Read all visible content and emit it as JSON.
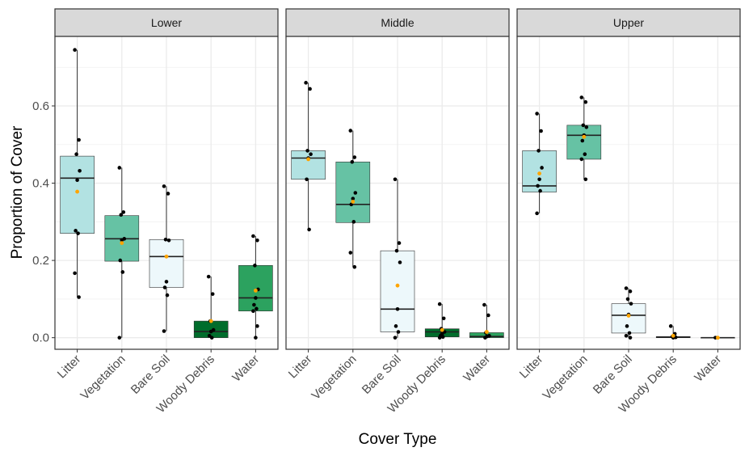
{
  "chart_data": {
    "type": "boxplot",
    "xlabel": "Cover Type",
    "ylabel": "Proportion of Cover",
    "ylim": [
      -0.03,
      0.78
    ],
    "yticks": [
      0.0,
      0.2,
      0.4,
      0.6
    ],
    "ytick_labels": [
      "0.0",
      "0.2",
      "0.4",
      "0.6"
    ],
    "grid": true,
    "categories": [
      "Litter",
      "Vegetation",
      "Bare Soil",
      "Woody Debris",
      "Water"
    ],
    "fill_colors": [
      "#b2e2e2",
      "#66c2a4",
      "#edf8fb",
      "#006d2c",
      "#2ca25f"
    ],
    "mean_color": "#ffa500",
    "panels": [
      {
        "name": "Lower",
        "boxes": [
          {
            "min": 0.105,
            "q1": 0.27,
            "median": 0.413,
            "q3": 0.47,
            "max": 0.745,
            "mean": 0.378,
            "points": [
              0.745,
              0.512,
              0.475,
              0.432,
              0.408,
              0.277,
              0.27,
              0.167,
              0.105
            ]
          },
          {
            "min": 0.0,
            "q1": 0.198,
            "median": 0.256,
            "q3": 0.316,
            "max": 0.44,
            "mean": 0.245,
            "points": [
              0.44,
              0.325,
              0.318,
              0.256,
              0.253,
              0.2,
              0.17,
              0.0
            ]
          },
          {
            "min": 0.017,
            "q1": 0.13,
            "median": 0.21,
            "q3": 0.254,
            "max": 0.392,
            "mean": 0.21,
            "points": [
              0.392,
              0.373,
              0.254,
              0.252,
              0.145,
              0.13,
              0.11,
              0.017
            ]
          },
          {
            "min": 0.0,
            "q1": 0.0,
            "median": 0.016,
            "q3": 0.043,
            "max": 0.158,
            "mean": 0.043,
            "points": [
              0.158,
              0.113,
              0.043,
              0.02,
              0.016,
              0.005,
              0.0
            ]
          },
          {
            "min": 0.0,
            "q1": 0.069,
            "median": 0.103,
            "q3": 0.187,
            "max": 0.263,
            "mean": 0.122,
            "points": [
              0.263,
              0.252,
              0.187,
              0.125,
              0.103,
              0.085,
              0.075,
              0.069,
              0.03,
              0.0
            ]
          }
        ]
      },
      {
        "name": "Middle",
        "boxes": [
          {
            "min": 0.28,
            "q1": 0.41,
            "median": 0.465,
            "q3": 0.484,
            "max": 0.66,
            "mean": 0.462,
            "points": [
              0.66,
              0.644,
              0.484,
              0.475,
              0.465,
              0.41,
              0.28
            ]
          },
          {
            "min": 0.183,
            "q1": 0.298,
            "median": 0.345,
            "q3": 0.455,
            "max": 0.536,
            "mean": 0.352,
            "points": [
              0.536,
              0.467,
              0.455,
              0.375,
              0.36,
              0.345,
              0.3,
              0.22,
              0.183
            ]
          },
          {
            "min": 0.0,
            "q1": 0.015,
            "median": 0.074,
            "q3": 0.225,
            "max": 0.41,
            "mean": 0.135,
            "points": [
              0.41,
              0.245,
              0.225,
              0.195,
              0.074,
              0.03,
              0.015,
              0.0
            ]
          },
          {
            "min": 0.0,
            "q1": 0.002,
            "median": 0.015,
            "q3": 0.023,
            "max": 0.087,
            "mean": 0.02,
            "points": [
              0.087,
              0.05,
              0.023,
              0.015,
              0.01,
              0.005,
              0.002,
              0.0
            ]
          },
          {
            "min": 0.0,
            "q1": 0.0,
            "median": 0.003,
            "q3": 0.013,
            "max": 0.085,
            "mean": 0.015,
            "points": [
              0.085,
              0.058,
              0.013,
              0.005,
              0.003,
              0.0
            ]
          }
        ]
      },
      {
        "name": "Upper",
        "boxes": [
          {
            "min": 0.322,
            "q1": 0.377,
            "median": 0.393,
            "q3": 0.484,
            "max": 0.58,
            "mean": 0.425,
            "points": [
              0.58,
              0.535,
              0.484,
              0.44,
              0.41,
              0.393,
              0.38,
              0.322
            ]
          },
          {
            "min": 0.41,
            "q1": 0.462,
            "median": 0.524,
            "q3": 0.55,
            "max": 0.622,
            "mean": 0.52,
            "points": [
              0.622,
              0.61,
              0.55,
              0.545,
              0.524,
              0.51,
              0.475,
              0.462,
              0.41
            ]
          },
          {
            "min": 0.0,
            "q1": 0.012,
            "median": 0.058,
            "q3": 0.088,
            "max": 0.128,
            "mean": 0.057,
            "points": [
              0.128,
              0.12,
              0.1,
              0.088,
              0.06,
              0.03,
              0.012,
              0.005,
              0.0
            ]
          },
          {
            "min": 0.0,
            "q1": 0.0,
            "median": 0.001,
            "q3": 0.003,
            "max": 0.03,
            "mean": 0.005,
            "points": [
              0.03,
              0.01,
              0.003,
              0.001,
              0.0
            ]
          },
          {
            "min": 0.0,
            "q1": 0.0,
            "median": 0.0,
            "q3": 0.0,
            "max": 0.0,
            "mean": 0.0,
            "points": [
              0.0
            ]
          }
        ]
      }
    ]
  }
}
